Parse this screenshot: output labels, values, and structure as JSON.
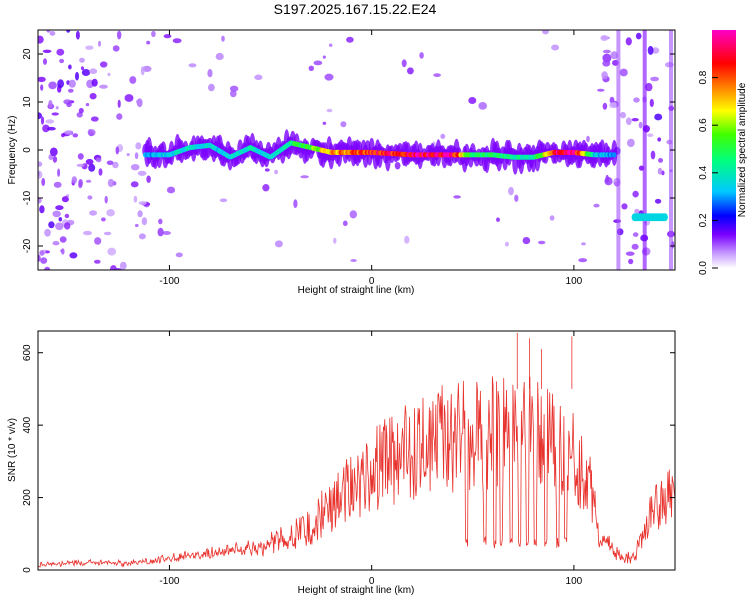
{
  "page": {
    "title": "S197.2025.167.15.22.E24"
  },
  "chart_data": [
    {
      "type": "heatmap",
      "xlabel": "Height of straight line (km)",
      "ylabel": "Frequency (Hz)",
      "xlim": [
        -165,
        150
      ],
      "ylim": [
        -25,
        25
      ],
      "xticks": [
        -100,
        0,
        100
      ],
      "yticks": [
        -20,
        -10,
        0,
        10,
        20
      ],
      "colorbar": {
        "label": "Normalized spectral amplitude",
        "range": [
          0,
          1
        ],
        "ticks": [
          0.0,
          0.2,
          0.4,
          0.6,
          0.8
        ],
        "colormap": [
          "#ffffff",
          "#9b30ff",
          "#0000ff",
          "#00ffff",
          "#00ff00",
          "#ffff00",
          "#ff0000",
          "#ff00ff"
        ]
      },
      "ridge": {
        "x": [
          -112,
          -100,
          -90,
          -80,
          -70,
          -60,
          -50,
          -40,
          -30,
          -20,
          -10,
          0,
          20,
          40,
          50,
          60,
          70,
          80,
          90,
          100,
          110,
          120
        ],
        "freq": [
          -1,
          -1,
          0.5,
          1,
          -1.5,
          0.5,
          -1.5,
          1.5,
          0.5,
          -0.5,
          -0.5,
          -0.5,
          -1,
          -1,
          -1,
          -1,
          -1.5,
          -1.5,
          -0.5,
          -0.5,
          -1,
          -1
        ],
        "amplitude": [
          0.3,
          0.35,
          0.4,
          0.35,
          0.35,
          0.4,
          0.35,
          0.45,
          0.55,
          0.75,
          0.8,
          0.85,
          0.95,
          0.95,
          0.45,
          0.5,
          0.45,
          0.4,
          0.9,
          0.95,
          0.35,
          0.3
        ]
      },
      "late_feature": {
        "x": [
          130,
          145
        ],
        "freq": [
          -14,
          -14
        ],
        "amplitude": 0.35
      }
    },
    {
      "type": "line",
      "xlabel": "Height of straight line (km)",
      "ylabel": "SNR (10 * v/v)",
      "xlim": [
        -165,
        150
      ],
      "ylim": [
        0,
        660
      ],
      "xticks": [
        -100,
        0,
        100
      ],
      "yticks": [
        0,
        200,
        400,
        600
      ],
      "color": "#e8322d",
      "envelope": {
        "x": [
          -165,
          -140,
          -120,
          -100,
          -80,
          -60,
          -40,
          -30,
          -20,
          -10,
          0,
          10,
          20,
          30,
          40,
          50,
          60,
          70,
          80,
          90,
          100,
          105,
          110,
          115,
          120,
          125,
          130,
          140,
          150
        ],
        "y": [
          20,
          25,
          25,
          40,
          60,
          80,
          130,
          180,
          250,
          330,
          390,
          430,
          470,
          500,
          520,
          530,
          540,
          545,
          540,
          520,
          440,
          370,
          300,
          190,
          80,
          40,
          60,
          250,
          340
        ]
      },
      "dropouts": [
        47,
        56,
        61,
        64,
        69,
        73,
        77,
        81,
        86,
        92,
        96,
        113
      ],
      "dropout_level": 75
    }
  ]
}
